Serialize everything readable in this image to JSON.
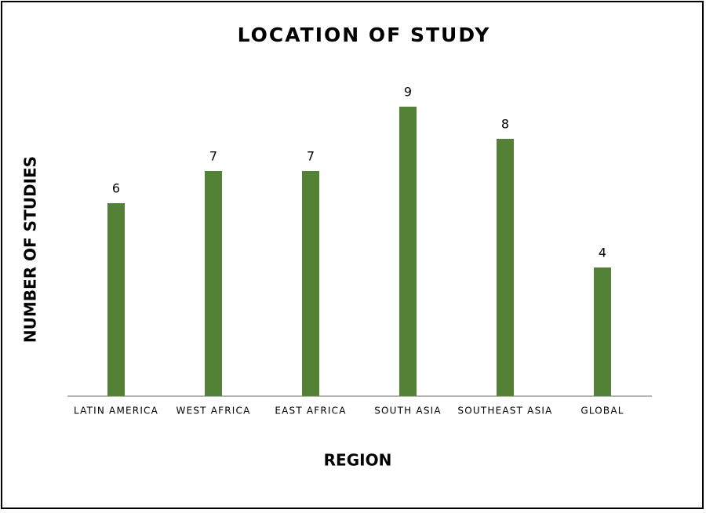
{
  "chart_data": {
    "type": "bar",
    "title": "LOCATION OF STUDY",
    "x_label": "REGION",
    "y_label": "NUMBER OF STUDIES",
    "categories": [
      "LATIN AMERICA",
      "WEST AFRICA",
      "EAST AFRICA",
      "SOUTH ASIA",
      "SOUTHEAST ASIA",
      "GLOBAL"
    ],
    "values": [
      6,
      7,
      7,
      9,
      8,
      4
    ],
    "color": "#538135",
    "ylim": [
      0,
      9
    ]
  }
}
